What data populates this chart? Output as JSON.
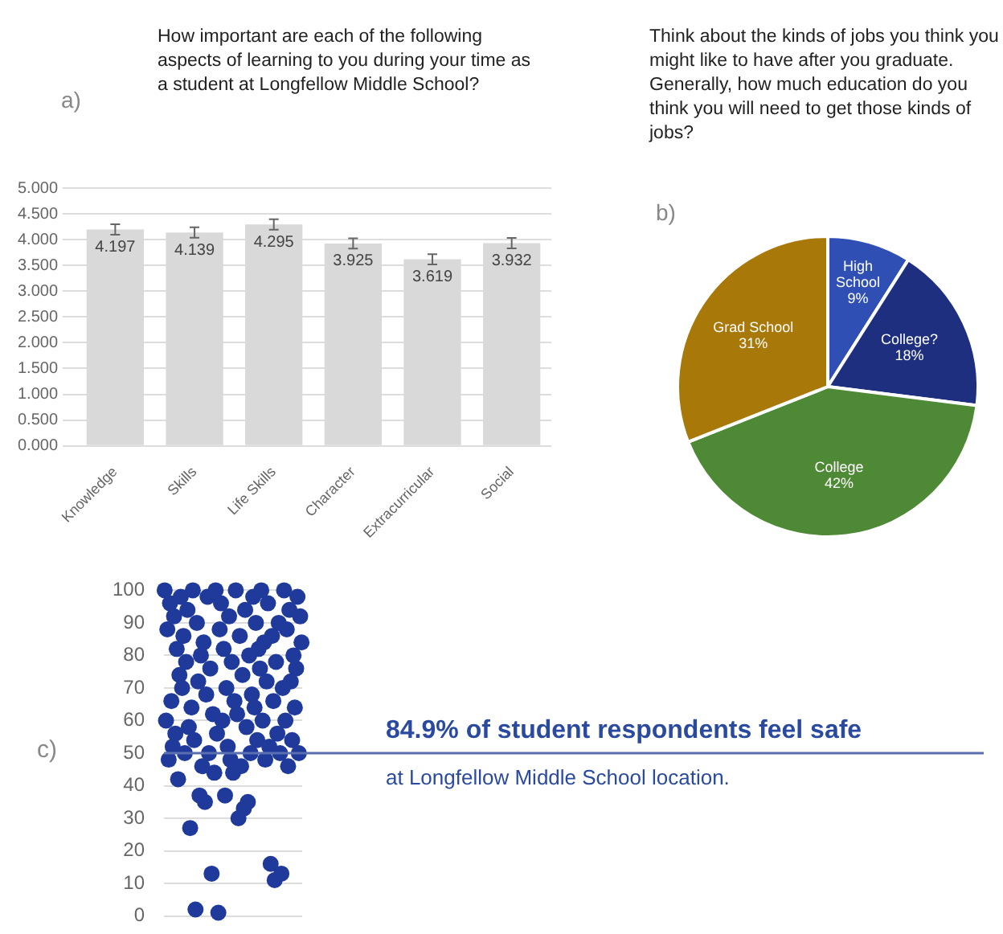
{
  "chart_data": [
    {
      "type": "bar",
      "title": "How important are each of the following aspects of learning to you during your time as a student at Longfellow Middle School?",
      "annotations": [
        "a)"
      ],
      "categories": [
        "Knowledge",
        "Skills",
        "Life Skills",
        "Character",
        "Extracurricular",
        "Social"
      ],
      "values": [
        4.197,
        4.139,
        4.295,
        3.925,
        3.619,
        3.932
      ],
      "errors": [
        0.1,
        0.1,
        0.1,
        0.1,
        0.1,
        0.1
      ],
      "color": "#d9d9d9",
      "data_labels": true,
      "ylim": [
        0,
        5
      ],
      "yticks": [
        {
          "value": 0,
          "label": "0.000"
        },
        {
          "value": 0.5,
          "label": "0.500"
        },
        {
          "value": 1,
          "label": "1.000"
        },
        {
          "value": 1.5,
          "label": "1.500"
        },
        {
          "value": 2,
          "label": "2.000"
        },
        {
          "value": 2.5,
          "label": "2.500"
        },
        {
          "value": 3,
          "label": "3.000"
        },
        {
          "value": 3.5,
          "label": "3.500"
        },
        {
          "value": 4,
          "label": "4.000"
        },
        {
          "value": 4.5,
          "label": "4.500"
        },
        {
          "value": 5,
          "label": "5.000"
        }
      ],
      "grid": "y"
    },
    {
      "type": "pie",
      "title": "Think about the kinds of jobs you think you might like to have after you graduate. Generally, how much education do you think you will need to get those kinds of jobs?",
      "annotations": [
        "b)"
      ],
      "categories": [
        "High School",
        "College?",
        "College",
        "Grad School"
      ],
      "values": [
        9,
        18,
        42,
        31
      ],
      "value_labels": [
        "9%",
        "18%",
        "42%",
        "31%"
      ],
      "colors": [
        "#2f4fb5",
        "#1f2f80",
        "#4e8a35",
        "#a87808"
      ]
    },
    {
      "type": "scatter",
      "annotations": [
        "c)",
        "84.9% of student respondents feel safe",
        "at Longfellow Middle School location."
      ],
      "categories": [
        null,
        null,
        null,
        null,
        null,
        null,
        null,
        null,
        null,
        null,
        null,
        null,
        null,
        null,
        null,
        null,
        null,
        null,
        null,
        null,
        null,
        null,
        null,
        null,
        null,
        null,
        null,
        null,
        null,
        null,
        null,
        null,
        null,
        null,
        null,
        null,
        null,
        null,
        null,
        null,
        null,
        null,
        null,
        null,
        null,
        null,
        null,
        null,
        null,
        null,
        null,
        null,
        null,
        null,
        null,
        null,
        null,
        null,
        null,
        null,
        null,
        null,
        null,
        null,
        null,
        null,
        null,
        null,
        null,
        null,
        null,
        null,
        null,
        null,
        null,
        null,
        null,
        null,
        null,
        null,
        null,
        null,
        null,
        null,
        null,
        null,
        null,
        null,
        null,
        null,
        null,
        null,
        null,
        null,
        null,
        null,
        null,
        null,
        null,
        null,
        null,
        null,
        null
      ],
      "values": [
        100,
        60,
        88,
        48,
        96,
        66,
        52,
        92,
        56,
        82,
        42,
        74,
        98,
        70,
        86,
        50,
        78,
        94,
        58,
        27,
        64,
        100,
        54,
        2,
        90,
        72,
        37,
        80,
        46,
        84,
        35,
        68,
        98,
        50,
        76,
        13,
        62,
        44,
        100,
        56,
        1,
        88,
        96,
        60,
        82,
        37,
        70,
        52,
        92,
        48,
        78,
        44,
        66,
        100,
        62,
        30,
        86,
        46,
        74,
        33,
        94,
        58,
        35,
        80,
        50,
        68,
        98,
        64,
        90,
        54,
        82,
        76,
        100,
        60,
        84,
        48,
        72,
        96,
        52,
        16,
        86,
        66,
        11,
        78,
        56,
        90,
        50,
        13,
        70,
        100,
        60,
        88,
        46,
        94,
        72,
        54,
        80,
        64,
        76,
        98,
        50,
        92,
        84
      ],
      "color": "#1f3a9a",
      "marker": "circle",
      "ylim": [
        0,
        100
      ],
      "yticks": [
        0,
        10,
        20,
        30,
        40,
        50,
        60,
        70,
        80,
        90,
        100
      ],
      "tick_labels": "y",
      "grid": "y",
      "ref_lines": [
        {
          "axis": "y",
          "value": 50,
          "label": null,
          "color": "#5a6fb0"
        }
      ]
    }
  ]
}
